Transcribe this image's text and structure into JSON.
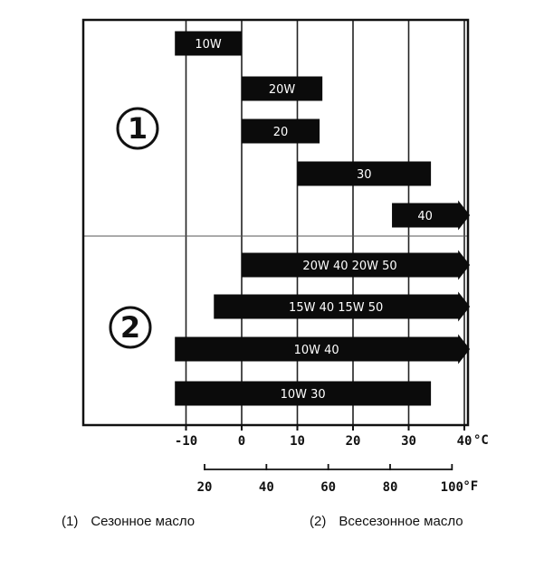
{
  "chart_data": {
    "type": "bar",
    "unit_c": "°C",
    "unit_f": "°F",
    "x_ticks_c": [
      -10,
      0,
      10,
      20,
      30,
      40
    ],
    "x_tick_labels_c": [
      "-10",
      "0",
      "10",
      "20",
      "30",
      "40"
    ],
    "x_ticks_f": [
      20,
      40,
      60,
      80,
      100
    ],
    "x_tick_labels_f": [
      "20",
      "40",
      "60",
      "80",
      "100"
    ],
    "xlim_c": [
      -18.5,
      41
    ],
    "groups": [
      {
        "marker": "1",
        "name": "Сезонное масло"
      },
      {
        "marker": "2",
        "name": "Всесезонное масло"
      }
    ],
    "bars": [
      {
        "label": "10W",
        "group": 1,
        "from": -12,
        "to": 0,
        "arrow": false
      },
      {
        "label": "20W",
        "group": 1,
        "from": 0,
        "to": 14.5,
        "arrow": false
      },
      {
        "label": "20",
        "group": 1,
        "from": 0,
        "to": 14,
        "arrow": false
      },
      {
        "label": "30",
        "group": 1,
        "from": 10,
        "to": 34,
        "arrow": false
      },
      {
        "label": "40",
        "group": 1,
        "from": 27,
        "to": 41,
        "arrow": true
      },
      {
        "label": "20W 40   20W 50",
        "group": 2,
        "from": 0,
        "to": 41,
        "arrow": true
      },
      {
        "label": "15W 40  15W 50",
        "group": 2,
        "from": -5,
        "to": 41,
        "arrow": true
      },
      {
        "label": "10W 40",
        "group": 2,
        "from": -12,
        "to": 41,
        "arrow": true
      },
      {
        "label": "10W 30",
        "group": 2,
        "from": -12,
        "to": 34,
        "arrow": false
      }
    ]
  },
  "captions": [
    {
      "num": "(1)",
      "text": "Сезонное масло"
    },
    {
      "num": "(2)",
      "text": "Всесезонное масло"
    }
  ]
}
